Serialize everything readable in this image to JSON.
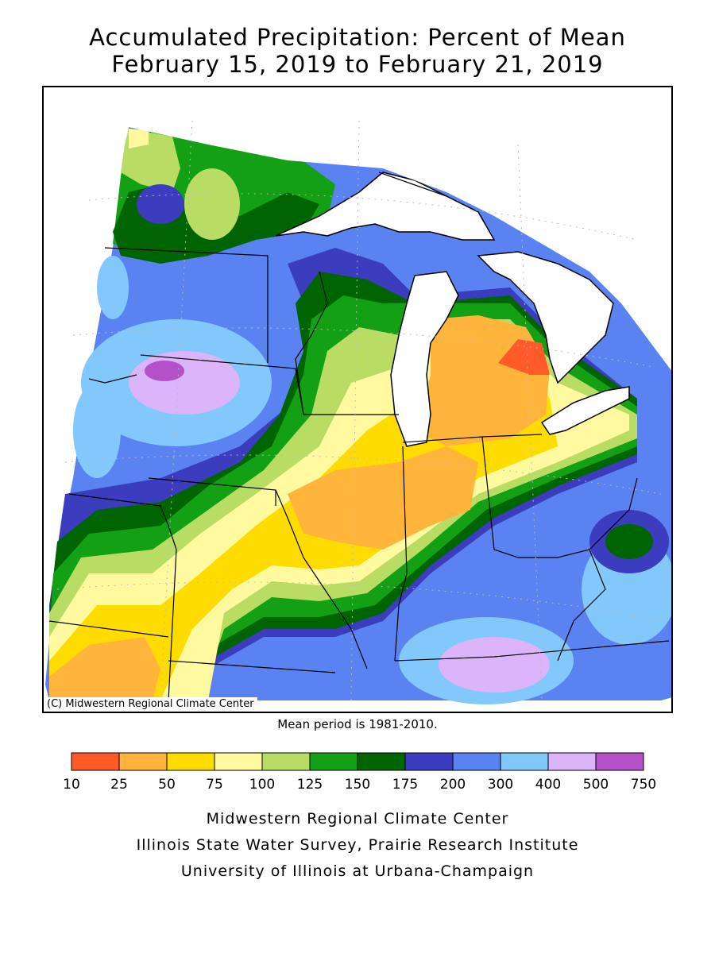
{
  "title": {
    "line1": "Accumulated Precipitation: Percent of Mean",
    "line2": "February 15, 2019 to February 21, 2019"
  },
  "map": {
    "copyright": "(C) Midwestern Regional Climate Center",
    "mean_period": "Mean period is 1981-2010."
  },
  "legend": {
    "bins": [
      {
        "color": "#ff5a28"
      },
      {
        "color": "#ffb43c"
      },
      {
        "color": "#ffdc00"
      },
      {
        "color": "#fffaa0"
      },
      {
        "color": "#b9dc64"
      },
      {
        "color": "#14a014"
      },
      {
        "color": "#006400"
      },
      {
        "color": "#3c3cbe"
      },
      {
        "color": "#5a82f0"
      },
      {
        "color": "#82c8fa"
      },
      {
        "color": "#dcb4fa"
      },
      {
        "color": "#b450c8"
      }
    ],
    "labels": [
      "10",
      "25",
      "50",
      "75",
      "100",
      "125",
      "150",
      "175",
      "200",
      "300",
      "400",
      "500",
      "750"
    ]
  },
  "footer": {
    "line1": "Midwestern Regional Climate Center",
    "line2": "Illinois State Water Survey, Prairie Research Institute",
    "line3": "University of Illinois at Urbana-Champaign"
  }
}
